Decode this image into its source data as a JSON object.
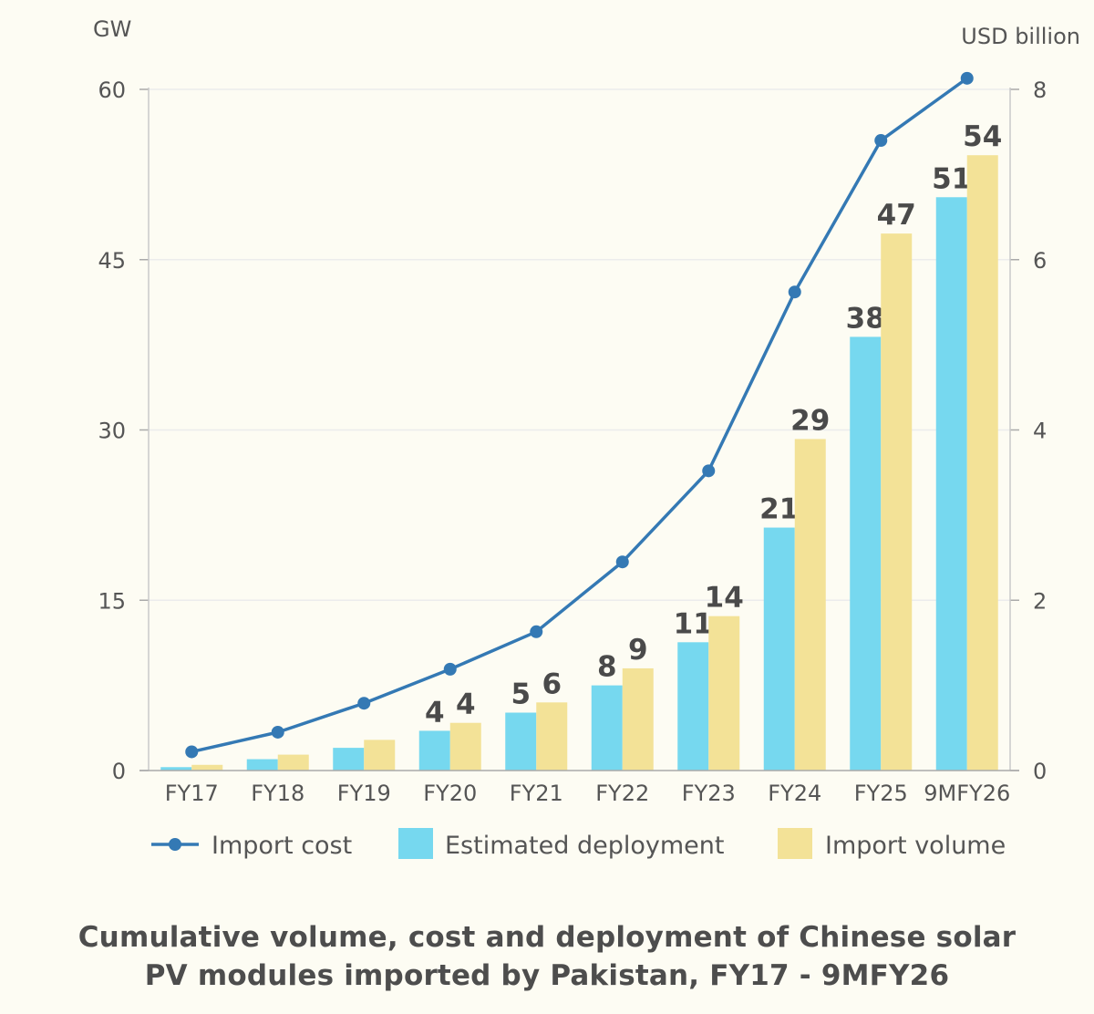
{
  "chart_data": {
    "type": "bar",
    "title_lines": [
      "Cumulative volume, cost and deployment of Chinese solar",
      "PV modules imported by Pakistan, FY17 - 9MFY26"
    ],
    "y_left_unit": "GW",
    "y_right_unit": "USD billion",
    "y_left_range": [
      0,
      60
    ],
    "y_left_ticks": [
      "0",
      "15",
      "30",
      "45",
      "60"
    ],
    "y_right_range": [
      0,
      8
    ],
    "y_right_ticks": [
      "0",
      "2",
      "4",
      "6",
      "8"
    ],
    "categories": [
      "FY17",
      "FY18",
      "FY19",
      "FY20",
      "FY21",
      "FY22",
      "FY23",
      "FY24",
      "FY25",
      "9MFY26"
    ],
    "series": [
      {
        "name": "Estimated deployment",
        "kind": "bar",
        "axis": "left",
        "color": "#76d8ef",
        "values": [
          0.3,
          1.0,
          2.0,
          3.5,
          5.1,
          7.5,
          11.3,
          21.4,
          38.2,
          50.5
        ],
        "labels": [
          "",
          "",
          "",
          "4",
          "5",
          "8",
          "11",
          "21",
          "38",
          "51"
        ]
      },
      {
        "name": "Import volume",
        "kind": "bar",
        "axis": "left",
        "color": "#f3e297",
        "values": [
          0.5,
          1.4,
          2.7,
          4.2,
          6.0,
          9.0,
          13.6,
          29.2,
          47.3,
          54.2
        ],
        "labels": [
          "",
          "",
          "",
          "4",
          "6",
          "9",
          "14",
          "29",
          "47",
          "54"
        ]
      },
      {
        "name": "Import cost",
        "kind": "line",
        "axis": "right",
        "color": "#3479b4",
        "values": [
          0.22,
          0.45,
          0.79,
          1.19,
          1.63,
          2.45,
          3.52,
          5.62,
          7.4,
          8.13
        ]
      }
    ],
    "legend_position": "bottom",
    "grid": true
  }
}
